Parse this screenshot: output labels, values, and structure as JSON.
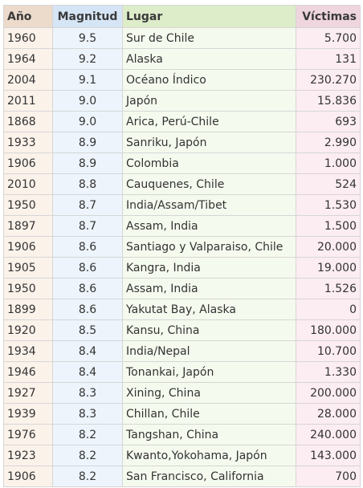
{
  "table": {
    "headers": {
      "year": "Año",
      "magnitude": "Magnitud",
      "place": "Lugar",
      "victims": "Víctimas"
    },
    "rows": [
      {
        "year": "1960",
        "magnitude": "9.5",
        "place": "Sur de Chile",
        "victims": "5.700"
      },
      {
        "year": "1964",
        "magnitude": "9.2",
        "place": "Alaska",
        "victims": "131"
      },
      {
        "year": "2004",
        "magnitude": "9.1",
        "place": "Océano Índico",
        "victims": "230.270"
      },
      {
        "year": "2011",
        "magnitude": "9.0",
        "place": "Japón",
        "victims": "15.836"
      },
      {
        "year": "1868",
        "magnitude": "9.0",
        "place": "Arica, Perú-Chile",
        "victims": "693"
      },
      {
        "year": "1933",
        "magnitude": "8.9",
        "place": "Sanriku, Japón",
        "victims": "2.990"
      },
      {
        "year": "1906",
        "magnitude": "8.9",
        "place": "Colombia",
        "victims": "1.000"
      },
      {
        "year": "2010",
        "magnitude": "8.8",
        "place": "Cauquenes, Chile",
        "victims": "524"
      },
      {
        "year": "1950",
        "magnitude": "8.7",
        "place": "India/Assam/Tibet",
        "victims": "1.530"
      },
      {
        "year": "1897",
        "magnitude": "8.7",
        "place": "Assam, India",
        "victims": "1.500"
      },
      {
        "year": "1906",
        "magnitude": "8.6",
        "place": "Santiago y Valparaiso, Chile",
        "victims": "20.000"
      },
      {
        "year": "1905",
        "magnitude": "8.6",
        "place": "Kangra, India",
        "victims": "19.000"
      },
      {
        "year": "1950",
        "magnitude": "8.6",
        "place": "Assam, India",
        "victims": "1.526"
      },
      {
        "year": "1899",
        "magnitude": "8.6",
        "place": "Yakutat Bay, Alaska",
        "victims": "0"
      },
      {
        "year": "1920",
        "magnitude": "8.5",
        "place": "Kansu, China",
        "victims": "180.000"
      },
      {
        "year": "1934",
        "magnitude": "8.4",
        "place": "India/Nepal",
        "victims": "10.700"
      },
      {
        "year": "1946",
        "magnitude": "8.4",
        "place": "Tonankai, Japón",
        "victims": "1.330"
      },
      {
        "year": "1927",
        "magnitude": "8.3",
        "place": "Xining, China",
        "victims": "200.000"
      },
      {
        "year": "1939",
        "magnitude": "8.3",
        "place": "Chillan, Chile",
        "victims": "28.000"
      },
      {
        "year": "1976",
        "magnitude": "8.2",
        "place": "Tangshan, China",
        "victims": "240.000"
      },
      {
        "year": "1923",
        "magnitude": "8.2",
        "place": "Kwanto,Yokohama, Japón",
        "victims": "143.000"
      },
      {
        "year": "1906",
        "magnitude": "8.2",
        "place": "San Francisco, California",
        "victims": "700"
      }
    ]
  },
  "colors": {
    "header_year": "#ecdacb",
    "header_magnitude": "#d6e5f6",
    "header_place": "#ddecc9",
    "header_victims": "#efd5de",
    "cell_year": "#fbf2ea",
    "cell_magnitude": "#edf4fc",
    "cell_place": "#f5faee",
    "cell_victims": "#fcedf2",
    "border": "#d6d6d6"
  }
}
